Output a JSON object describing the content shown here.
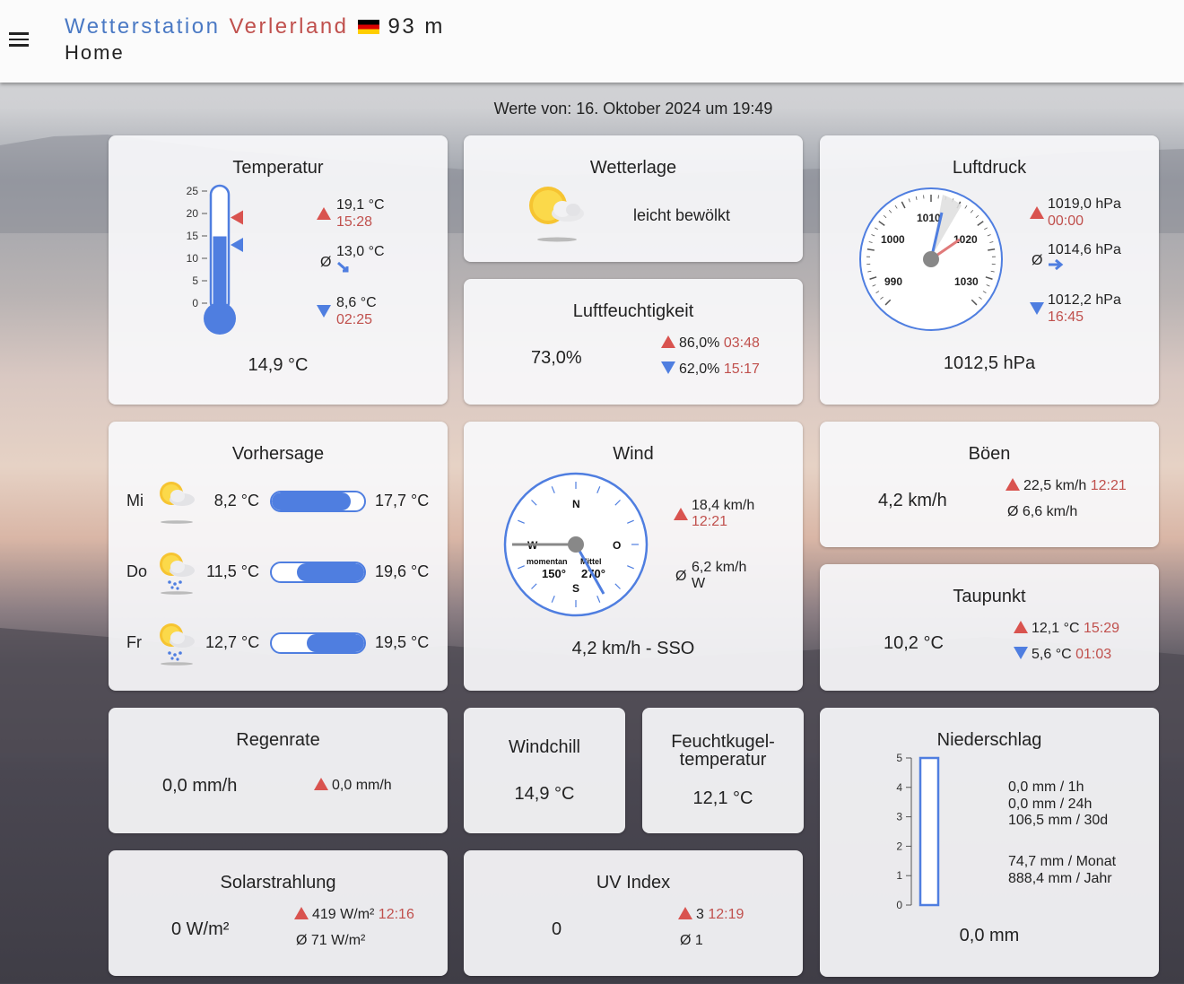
{
  "header": {
    "station_prefix": "Wetterstation",
    "station_name": "Verlerland",
    "altitude": "93 m",
    "page": "Home"
  },
  "timestamp": "Werte von: 16. Oktober 2024 um 19:49",
  "temperature": {
    "title": "Temperatur",
    "current": "14,9 °C",
    "max": "19,1 °C",
    "max_time": "15:28",
    "avg_symbol": "Ø",
    "avg": "13,0 °C",
    "min": "8,6 °C",
    "min_time": "02:25",
    "scale": [
      "25",
      "20",
      "15",
      "10",
      "5",
      "0"
    ],
    "current_value": 14.9,
    "max_value": 19.1,
    "min_value": 8.6
  },
  "weather": {
    "title": "Wetterlage",
    "icon": "partly-cloudy-icon",
    "text": "leicht bewölkt"
  },
  "pressure": {
    "title": "Luftdruck",
    "current": "1012,5 hPa",
    "max": "1019,0 hPa",
    "max_time": "00:00",
    "avg_symbol": "Ø",
    "avg": "1014,6 hPa",
    "min": "1012,2 hPa",
    "min_time": "16:45",
    "gauge_labels": [
      "990",
      "1000",
      "1010",
      "1020",
      "1030"
    ]
  },
  "humidity": {
    "title": "Luftfeuchtigkeit",
    "current": "73,0%",
    "max": "86,0%",
    "max_time": "03:48",
    "min": "62,0%",
    "min_time": "15:17"
  },
  "forecast": {
    "title": "Vorhersage",
    "days": [
      {
        "day": "Mi",
        "min": "8,2 °C",
        "max": "17,7 °C",
        "icon": "partly-cloudy-icon",
        "bar_start": 0.0,
        "bar_end": 0.85
      },
      {
        "day": "Do",
        "min": "11,5 °C",
        "max": "19,6 °C",
        "icon": "cloud-rain-sun-icon",
        "bar_start": 0.27,
        "bar_end": 1.0
      },
      {
        "day": "Fr",
        "min": "12,7 °C",
        "max": "19,5 °C",
        "icon": "cloud-rain-sun-icon",
        "bar_start": 0.38,
        "bar_end": 1.0
      }
    ]
  },
  "wind": {
    "title": "Wind",
    "current": "4,2 km/h - SSO",
    "max": "18,4 km/h",
    "max_time": "12:21",
    "avg_symbol": "Ø",
    "avg": "6,2 km/h",
    "avg_dir": "W",
    "compass": {
      "n": "N",
      "o": "O",
      "s": "S",
      "w": "W",
      "now_label": "momentan",
      "now_value": "150°",
      "mean_label": "Mittel",
      "mean_value": "270°"
    }
  },
  "gusts": {
    "title": "Böen",
    "current": "4,2 km/h",
    "max": "22,5 km/h",
    "max_time": "12:21",
    "avg_symbol": "Ø",
    "avg": "6,6 km/h"
  },
  "dewpoint": {
    "title": "Taupunkt",
    "current": "10,2 °C",
    "max": "12,1 °C",
    "max_time": "15:29",
    "min": "5,6 °C",
    "min_time": "01:03"
  },
  "rainrate": {
    "title": "Regenrate",
    "current": "0,0 mm/h",
    "max": "0,0 mm/h"
  },
  "windchill": {
    "title": "Windchill",
    "value": "14,9 °C"
  },
  "wetbulb": {
    "title_1": "Feuchtkugel-",
    "title_2": "temperatur",
    "value": "12,1 °C"
  },
  "precipitation": {
    "title": "Niederschlag",
    "current": "0,0 mm",
    "scale": [
      "5",
      "4",
      "3",
      "2",
      "1",
      "0"
    ],
    "lines": [
      "0,0 mm  / 1h",
      "0,0 mm / 24h",
      "106,5 mm / 30d"
    ],
    "lines2": [
      "74,7 mm  / Monat",
      "888,4 mm / Jahr"
    ]
  },
  "solar": {
    "title": "Solarstrahlung",
    "current": "0 W/m²",
    "max": "419 W/m²",
    "max_time": "12:16",
    "avg_symbol": "Ø",
    "avg": "71 W/m²"
  },
  "uv": {
    "title": "UV Index",
    "current": "0",
    "max": "3",
    "max_time": "12:19",
    "avg_symbol": "Ø",
    "avg": "1"
  },
  "colors": {
    "accent_blue": "#4f7ee0",
    "max_red": "#d9534f",
    "title_blue": "#4a79c4",
    "title_red": "#c0504d"
  }
}
